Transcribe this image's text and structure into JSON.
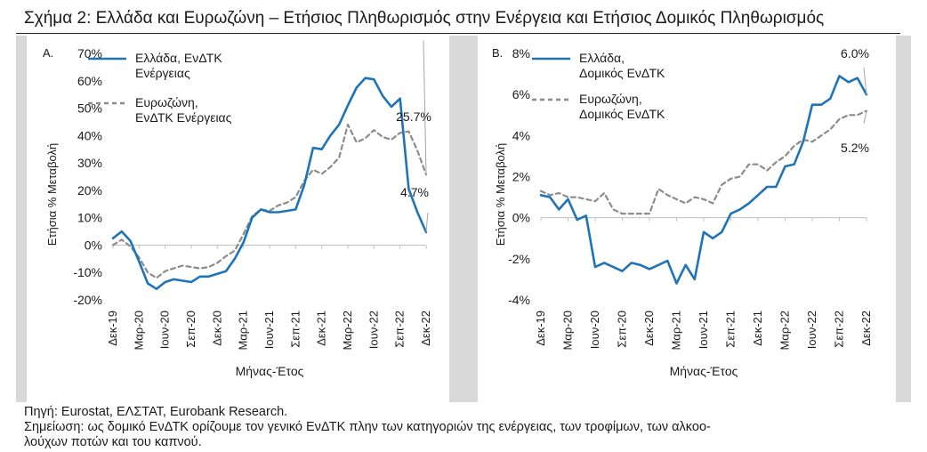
{
  "title": "Σχήμα 2: Ελλάδα και Ευρωζώνη – Ετήσιος Πληθωρισμός στην Ενέργεια και Ετήσιος Δομικός Πληθωρισμός",
  "footer": {
    "source": "Πηγή: Eurostat, ΕΛΣΤΑΤ, Eurobank Research.",
    "note_line1": "Σημείωση: ως δομικό ΕνΔΤΚ ορίζουμε τον γενικό ΕνΔΤΚ πλην των κατηγοριών της ενέργειας, των τροφίμων, των αλκοο-",
    "note_line2": "λούχων ποτών και του καπνού."
  },
  "colors": {
    "greece": "#1f73b7",
    "eurozone": "#8c8c8c",
    "panel_bg": "#d9d9d9"
  },
  "chart_data": [
    {
      "type": "line",
      "panel_label": "A.",
      "xlabel": "Μήνας-Έτος",
      "ylabel": "Ετήσια % Μεταβολή",
      "ylim": [
        -20,
        70
      ],
      "yticks": [
        -20,
        -10,
        0,
        10,
        20,
        30,
        40,
        50,
        60,
        70
      ],
      "tick_suffix": "%",
      "x": [
        "Δεκ-19",
        "Ιαν-20",
        "Φεβ-20",
        "Μαρ-20",
        "Απρ-20",
        "Μαϊ-20",
        "Ιουν-20",
        "Ιουλ-20",
        "Αυγ-20",
        "Σεπ-20",
        "Οκτ-20",
        "Νοε-20",
        "Δεκ-20",
        "Ιαν-21",
        "Φεβ-21",
        "Μαρ-21",
        "Απρ-21",
        "Μαϊ-21",
        "Ιουν-21",
        "Ιουλ-21",
        "Αυγ-21",
        "Σεπ-21",
        "Οκτ-21",
        "Νοε-21",
        "Δεκ-21",
        "Ιαν-22",
        "Φεβ-22",
        "Μαρ-22",
        "Απρ-22",
        "Μαϊ-22",
        "Ιουν-22",
        "Ιουλ-22",
        "Αυγ-22",
        "Σεπ-22",
        "Οκτ-22",
        "Νοε-22",
        "Δεκ-22"
      ],
      "xtick_labels": [
        "Δεκ-19",
        "Μαρ-20",
        "Ιουν-20",
        "Σεπ-20",
        "Δεκ-20",
        "Μαρ-21",
        "Ιουν-21",
        "Σεπ-21",
        "Δεκ-21",
        "Μαρ-22",
        "Ιουν-22",
        "Σεπ-22",
        "Δεκ-22"
      ],
      "series": [
        {
          "name": "Ελλάδα, ΕνΔΤΚ Ενέργειας",
          "style": "solid",
          "values": [
            2.5,
            5,
            1.5,
            -6,
            -14,
            -16,
            -13.5,
            -12.5,
            -13,
            -13.5,
            -11.5,
            -11.5,
            -10.5,
            -9.5,
            -5,
            1,
            10,
            13,
            12,
            12,
            12.5,
            13,
            22,
            35.5,
            35,
            40,
            44,
            51,
            57.5,
            61,
            60.5,
            54.5,
            50.5,
            53.5,
            20.5,
            12,
            4.7
          ]
        },
        {
          "name": "Ευρωζώνη, ΕνΔΤΚ Ενέργειας",
          "style": "dashed",
          "values": [
            0,
            2,
            -0.5,
            -4.5,
            -10,
            -12,
            -9.5,
            -8.5,
            -7.5,
            -8,
            -8.5,
            -8,
            -6.5,
            -4,
            -2,
            4,
            10.5,
            13,
            12.5,
            14.5,
            15.5,
            17.5,
            23.5,
            27.5,
            26,
            28.5,
            32,
            44,
            37.5,
            39,
            42,
            39.5,
            38.5,
            41,
            41.5,
            34.5,
            25.7
          ]
        }
      ],
      "annotations": [
        {
          "text": "25.7%",
          "series": 1,
          "index": 36
        },
        {
          "text": "4.7%",
          "series": 0,
          "index": 36
        }
      ],
      "legend_position": "top-left",
      "legend_labels": [
        [
          "Ελλάδα, ΕνΔΤΚ",
          "Ενέργειας"
        ],
        [
          "Ευρωζώνη,",
          "ΕνΔΤΚ Ενέργειας"
        ]
      ]
    },
    {
      "type": "line",
      "panel_label": "B.",
      "xlabel": "Μήνας-Έτος",
      "ylabel": "Ετήσια % Μεταβολή",
      "ylim": [
        -4,
        8
      ],
      "yticks": [
        -4,
        -2,
        0,
        2,
        4,
        6,
        8
      ],
      "tick_suffix": "%",
      "x": [
        "Δεκ-19",
        "Ιαν-20",
        "Φεβ-20",
        "Μαρ-20",
        "Απρ-20",
        "Μαϊ-20",
        "Ιουν-20",
        "Ιουλ-20",
        "Αυγ-20",
        "Σεπ-20",
        "Οκτ-20",
        "Νοε-20",
        "Δεκ-20",
        "Ιαν-21",
        "Φεβ-21",
        "Μαρ-21",
        "Απρ-21",
        "Μαϊ-21",
        "Ιουν-21",
        "Ιουλ-21",
        "Αυγ-21",
        "Σεπ-21",
        "Οκτ-21",
        "Νοε-21",
        "Δεκ-21",
        "Ιαν-22",
        "Φεβ-22",
        "Μαρ-22",
        "Απρ-22",
        "Μαϊ-22",
        "Ιουν-22",
        "Ιουλ-22",
        "Αυγ-22",
        "Σεπ-22",
        "Οκτ-22",
        "Νοε-22",
        "Δεκ-22"
      ],
      "xtick_labels": [
        "Δεκ-19",
        "Μαρ-20",
        "Ιουν-20",
        "Σεπ-20",
        "Δεκ-20",
        "Μαρ-21",
        "Ιουν-21",
        "Σεπ-21",
        "Δεκ-21",
        "Μαρ-22",
        "Ιουν-22",
        "Σεπ-22",
        "Δεκ-22"
      ],
      "series": [
        {
          "name": "Ελλάδα, Δομικός ΕνΔΤΚ",
          "style": "solid",
          "values": [
            1.1,
            1,
            0.4,
            0.9,
            -0.1,
            0.1,
            -2.4,
            -2.2,
            -2.4,
            -2.6,
            -2.2,
            -2.3,
            -2.5,
            -2.3,
            -2.1,
            -3.2,
            -2.3,
            -3,
            -0.7,
            -1,
            -0.7,
            0.2,
            0.4,
            0.7,
            1.1,
            1.5,
            1.5,
            2.5,
            2.6,
            3.7,
            5.5,
            5.5,
            5.8,
            6.9,
            6.6,
            6.8,
            6.0
          ]
        },
        {
          "name": "Ευρωζώνη, Δομικός ΕνΔΤΚ",
          "style": "dashed",
          "values": [
            1.3,
            1.1,
            1.2,
            1,
            1,
            0.9,
            0.8,
            1.2,
            0.4,
            0.2,
            0.2,
            0.2,
            0.2,
            1.4,
            1.1,
            0.9,
            0.7,
            1,
            0.9,
            0.7,
            1.6,
            1.9,
            2,
            2.6,
            2.6,
            2.3,
            2.7,
            3,
            3.5,
            3.8,
            3.7,
            4,
            4.3,
            4.8,
            5,
            5,
            5.2
          ]
        }
      ],
      "annotations": [
        {
          "text": "6.0%",
          "series": 0,
          "index": 36
        },
        {
          "text": "5.2%",
          "series": 1,
          "index": 36
        }
      ],
      "legend_position": "top-left",
      "legend_labels": [
        [
          "Ελλάδα,",
          "Δομικός ΕνΔΤΚ"
        ],
        [
          "Ευρωζώνη,",
          "Δομικός ΕνΔΤΚ"
        ]
      ]
    }
  ]
}
